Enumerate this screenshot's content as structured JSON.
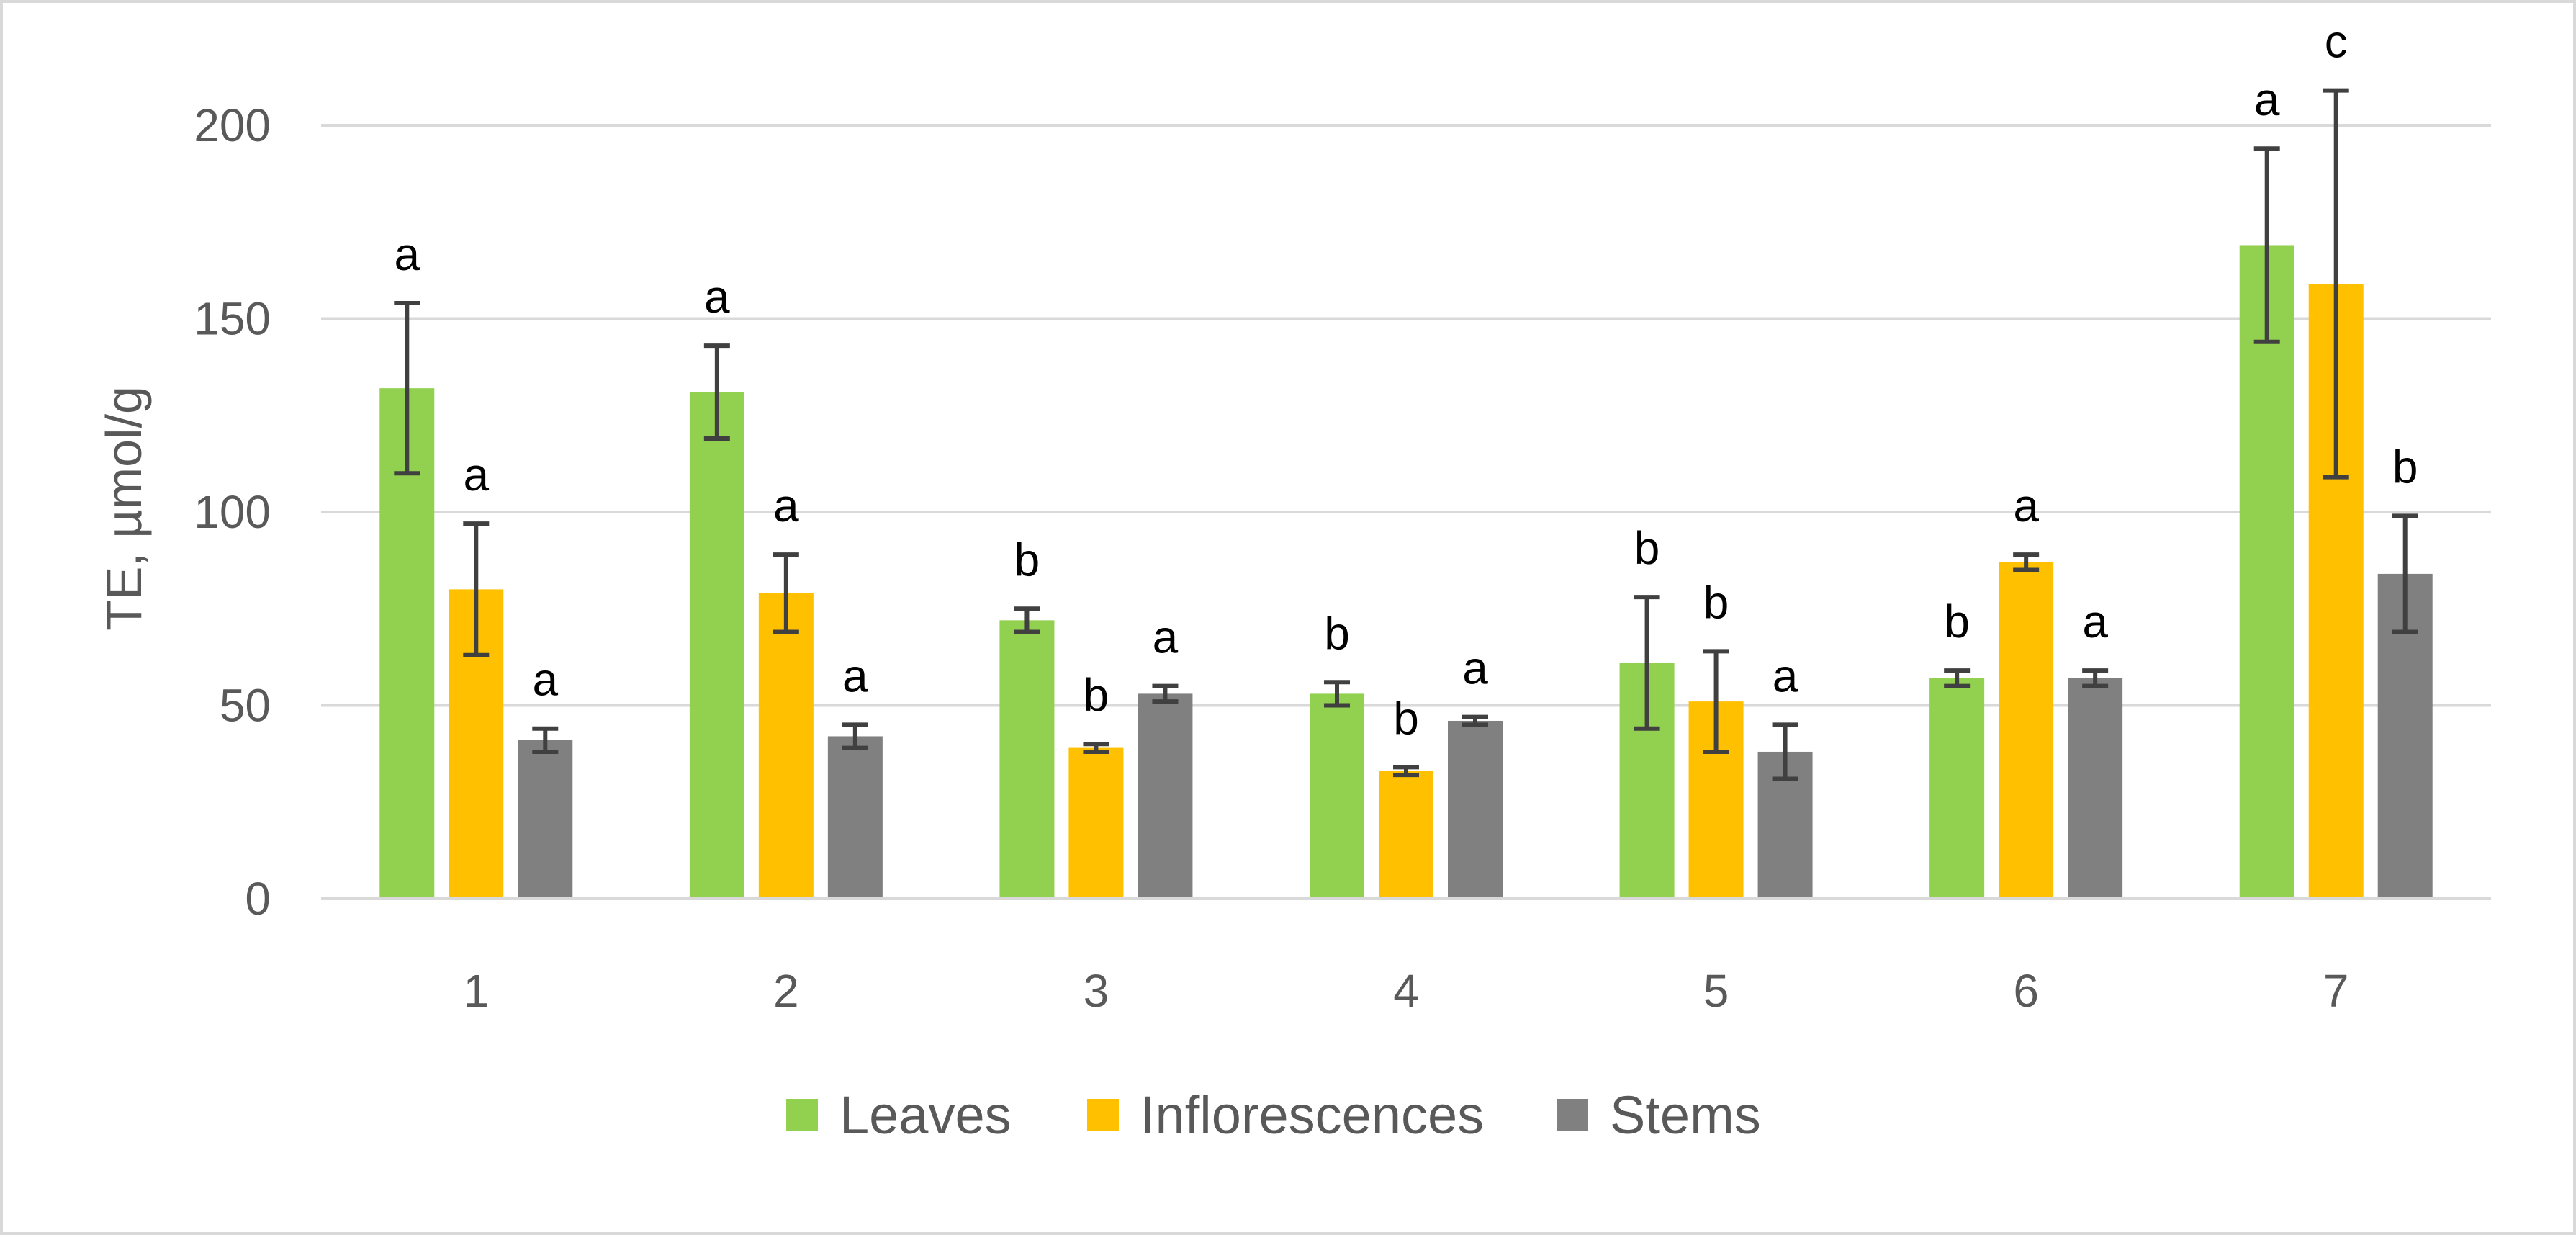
{
  "chart_data": {
    "type": "bar",
    "ylabel": "TE, µmol/g",
    "xlabel": "",
    "ylim": [
      0,
      200
    ],
    "yticks": [
      "0",
      "50",
      "100",
      "150",
      "200"
    ],
    "categories": [
      "1",
      "2",
      "3",
      "4",
      "5",
      "6",
      "7"
    ],
    "legend_position": "bottom",
    "grid": true,
    "series": [
      {
        "name": "Leaves",
        "color": "#92d050",
        "values": [
          132,
          131,
          72,
          53,
          61,
          57,
          169
        ],
        "errors": [
          22,
          12,
          3,
          3,
          17,
          2,
          25
        ],
        "letters": [
          "a",
          "a",
          "b",
          "b",
          "b",
          "b",
          "a"
        ]
      },
      {
        "name": "Inflorescences",
        "color": "#ffc000",
        "values": [
          80,
          79,
          39,
          33,
          51,
          87,
          159
        ],
        "errors": [
          17,
          10,
          1,
          1,
          13,
          2,
          50
        ],
        "letters": [
          "a",
          "a",
          "b",
          "b",
          "b",
          "a",
          "c"
        ]
      },
      {
        "name": "Stems",
        "color": "#808080",
        "values": [
          41,
          42,
          53,
          46,
          38,
          57,
          84
        ],
        "errors": [
          3,
          3,
          2,
          1,
          7,
          2,
          15
        ],
        "letters": [
          "a",
          "a",
          "a",
          "a",
          "a",
          "a",
          "b"
        ]
      }
    ]
  }
}
